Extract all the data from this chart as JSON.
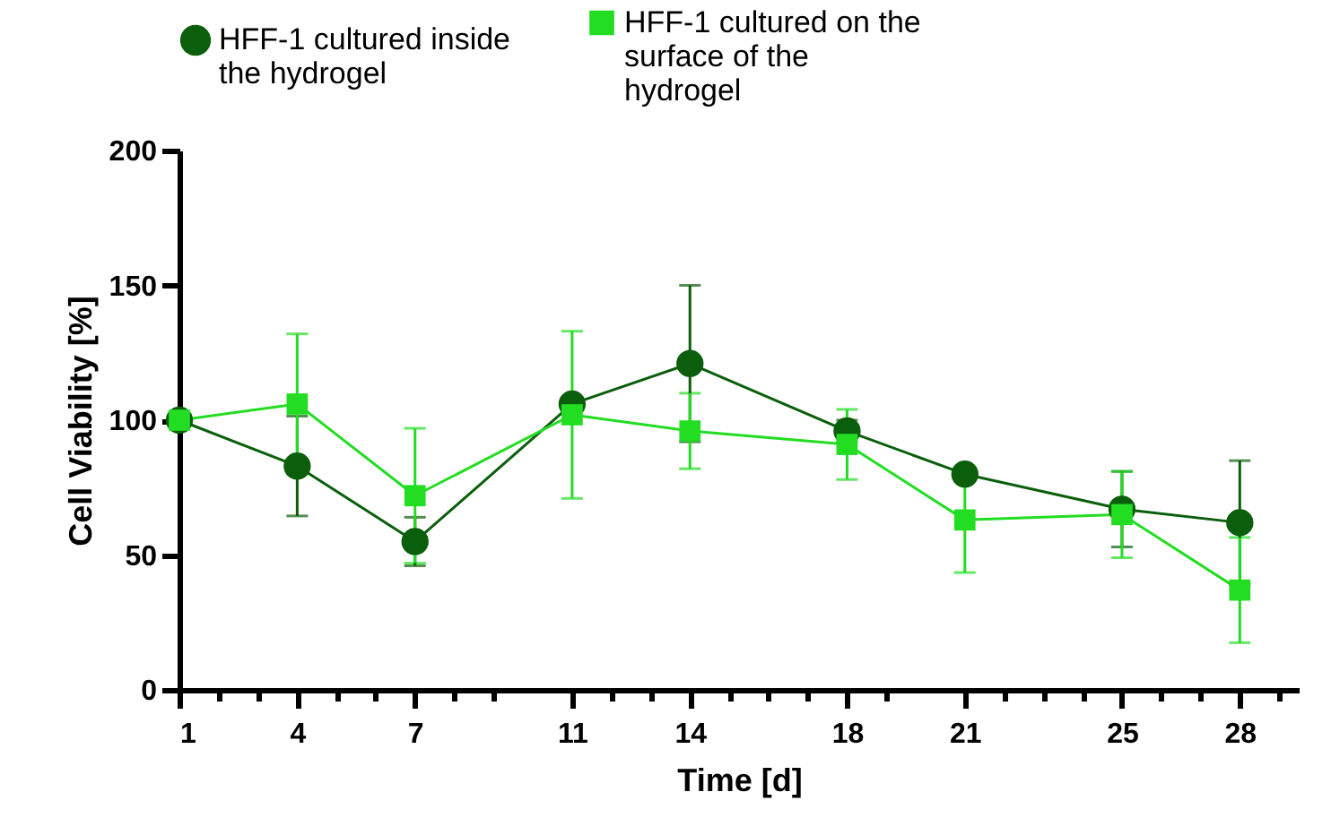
{
  "chart_data": {
    "type": "line",
    "xlabel": "Time [d]",
    "ylabel": "Cell Viability [%]",
    "x": [
      1,
      4,
      7,
      11,
      14,
      18,
      21,
      25,
      28
    ],
    "series": [
      {
        "name": "HFF-1 cultured inside the hydrogel",
        "color": "#0b5e0b",
        "marker": "circle",
        "values": [
          100,
          83,
          55,
          106,
          121,
          96,
          80,
          67,
          62
        ],
        "errors": [
          null,
          18.5,
          9,
          null,
          29,
          4,
          null,
          14,
          23
        ]
      },
      {
        "name": "HFF-1 cultured on the surface of the hydrogel",
        "color": "#22dd22",
        "marker": "square",
        "values": [
          100,
          106,
          72,
          102,
          96,
          91,
          63,
          65,
          37
        ],
        "errors": [
          null,
          26,
          25,
          31,
          14,
          13,
          19.5,
          16,
          19.5
        ]
      }
    ],
    "xlim": [
      1,
      29.5
    ],
    "xticks": [
      1,
      {
        "value": 2,
        "label": null
      },
      {
        "value": 3,
        "label": null
      },
      4,
      {
        "value": 5,
        "label": null
      },
      {
        "value": 6,
        "label": null
      },
      7,
      {
        "value": 8,
        "label": null
      },
      {
        "value": 9,
        "label": null
      },
      11,
      {
        "value": 12,
        "label": null
      },
      {
        "value": 13,
        "label": null
      },
      14,
      {
        "value": 15,
        "label": null
      },
      {
        "value": 16,
        "label": null
      },
      {
        "value": 17,
        "label": null
      },
      18,
      {
        "value": 19,
        "label": null
      },
      21,
      {
        "value": 22,
        "label": null
      },
      {
        "value": 23,
        "label": null
      },
      {
        "value": 24,
        "label": null
      },
      25,
      {
        "value": 26,
        "label": null
      },
      {
        "value": 27,
        "label": null
      },
      28,
      {
        "value": 29,
        "label": null
      }
    ],
    "ylim": [
      0,
      200
    ],
    "yticks": [
      0,
      50,
      100,
      150,
      200
    ],
    "grid": false,
    "legend": "top",
    "line_style": "solid"
  }
}
